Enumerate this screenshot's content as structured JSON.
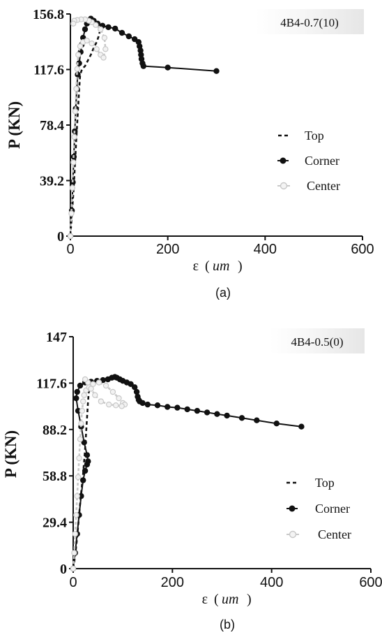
{
  "figure": {
    "panels": [
      {
        "title_box": "4B4-0.7(10)",
        "ylabel": "P (KN)",
        "xlabel_symbol": "ε",
        "xlabel_unit": "um",
        "subcaption": "(a)"
      },
      {
        "title_box": "4B4-0.5(0)",
        "ylabel": "P (KN)",
        "xlabel_symbol": "ε",
        "xlabel_unit": "um",
        "subcaption": "(b)"
      }
    ]
  },
  "colors": {
    "top": "#111111",
    "corner": "#111111",
    "center_fill": "#f2f2f2",
    "center_stroke": "#c8c8c8",
    "axis": "#111111"
  },
  "chart_data": [
    {
      "type": "line",
      "title": "4B4-0.7(10)",
      "xlabel": "ε (um)",
      "ylabel": "P (KN)",
      "xlim": [
        0,
        600
      ],
      "ylim": [
        0,
        156.8
      ],
      "xticks": [
        0,
        200,
        400,
        600
      ],
      "yticks": [
        0,
        39.2,
        78.4,
        117.6,
        156.8
      ],
      "xtick_labels": [
        "0",
        "200",
        "400",
        "600"
      ],
      "ytick_labels": [
        "0",
        "39.2",
        "78.4",
        "117.6",
        "156.8"
      ],
      "legend": {
        "position": "center-right"
      },
      "series": [
        {
          "name": "Top",
          "style": "dashed",
          "x": [
            0,
            2,
            4,
            6,
            8,
            10,
            12,
            14,
            16,
            18,
            20,
            24,
            30,
            36,
            42,
            48,
            54,
            58,
            60
          ],
          "y": [
            0,
            10,
            20,
            30,
            42,
            55,
            68,
            80,
            92,
            104,
            114,
            118,
            120,
            124,
            128,
            133,
            137,
            141,
            144
          ]
        },
        {
          "name": "Corner",
          "style": "solid",
          "marker": "filled",
          "x": [
            0,
            3,
            5,
            7,
            9,
            11,
            13,
            15,
            18,
            21,
            23,
            26,
            30,
            34,
            38,
            42,
            48,
            56,
            66,
            78,
            92,
            106,
            120,
            132,
            140,
            142,
            144,
            145,
            146,
            148,
            150,
            200,
            300
          ],
          "y": [
            0,
            18,
            38,
            56,
            74,
            90,
            104,
            114,
            122,
            130,
            135,
            140,
            146,
            150,
            152,
            153.5,
            152,
            150,
            148.5,
            147.5,
            146.5,
            143.5,
            141,
            139,
            137,
            134,
            131,
            128,
            125,
            122,
            120,
            119,
            116.5
          ]
        },
        {
          "name": "Center",
          "style": "dashed",
          "marker": "open",
          "x": [
            0,
            2,
            4,
            6,
            8,
            10,
            12,
            14,
            16,
            20,
            26,
            34,
            44,
            54,
            62,
            68,
            72,
            70,
            62,
            52,
            44,
            38,
            30,
            22,
            14,
            8,
            6
          ],
          "y": [
            0,
            16,
            34,
            52,
            70,
            88,
            104,
            118,
            128,
            134,
            137,
            138,
            136,
            132,
            128,
            126,
            132,
            140,
            146,
            149,
            151,
            152,
            153,
            153,
            152.5,
            152,
            150
          ]
        }
      ]
    },
    {
      "type": "line",
      "title": "4B4-0.5(0)",
      "xlabel": "ε (um)",
      "ylabel": "P (KN)",
      "xlim": [
        0,
        600
      ],
      "ylim": [
        0,
        147
      ],
      "xticks": [
        0,
        200,
        400,
        600
      ],
      "yticks": [
        0,
        29.4,
        58.8,
        88.2,
        117.6,
        147
      ],
      "xtick_labels": [
        "0",
        "200",
        "400",
        "600"
      ],
      "ytick_labels": [
        "0",
        "29.4",
        "58.8",
        "88.2",
        "117.6",
        "147"
      ],
      "legend": {
        "position": "bottom-right"
      },
      "series": [
        {
          "name": "Top",
          "style": "dashed",
          "x": [
            0,
            4,
            8,
            12,
            16,
            20,
            22,
            24,
            26,
            28,
            30,
            32,
            34,
            36
          ],
          "y": [
            0,
            8,
            20,
            34,
            48,
            60,
            68,
            76,
            86,
            96,
            106,
            114,
            118,
            120
          ]
        },
        {
          "name": "Corner",
          "style": "solid",
          "marker": "filled",
          "x": [
            0,
            4,
            8,
            12,
            16,
            20,
            24,
            28,
            30,
            28,
            22,
            16,
            10,
            6,
            8,
            14,
            24,
            36,
            48,
            60,
            70,
            78,
            84,
            88,
            94,
            100,
            108,
            116,
            124,
            128,
            130,
            132,
            134,
            140,
            150,
            170,
            190,
            210,
            230,
            250,
            270,
            290,
            310,
            340,
            370,
            410,
            460
          ],
          "y": [
            0,
            10,
            22,
            34,
            46,
            56,
            62,
            66,
            68,
            72,
            80,
            90,
            100,
            108,
            112,
            116,
            118,
            118.5,
            119,
            119.5,
            120,
            121,
            121.5,
            121,
            120,
            119,
            118,
            117,
            115,
            112,
            109,
            107,
            106,
            105,
            104,
            103.5,
            102.5,
            102,
            101,
            100,
            99,
            98,
            97,
            95.5,
            94,
            92,
            90
          ]
        },
        {
          "name": "Center",
          "style": "dashed",
          "marker": "open",
          "x": [
            0,
            2,
            4,
            6,
            8,
            10,
            12,
            14,
            16,
            18,
            20,
            22,
            26,
            32,
            40,
            52,
            66,
            80,
            92,
            100,
            104,
            98,
            86,
            72,
            56,
            44,
            36,
            30,
            24
          ],
          "y": [
            0,
            10,
            22,
            34,
            46,
            58,
            70,
            82,
            92,
            100,
            106,
            110,
            113,
            115,
            117,
            118,
            116,
            112,
            108,
            105,
            104,
            103,
            103.5,
            104,
            106,
            110,
            114,
            118,
            120
          ]
        }
      ]
    }
  ]
}
